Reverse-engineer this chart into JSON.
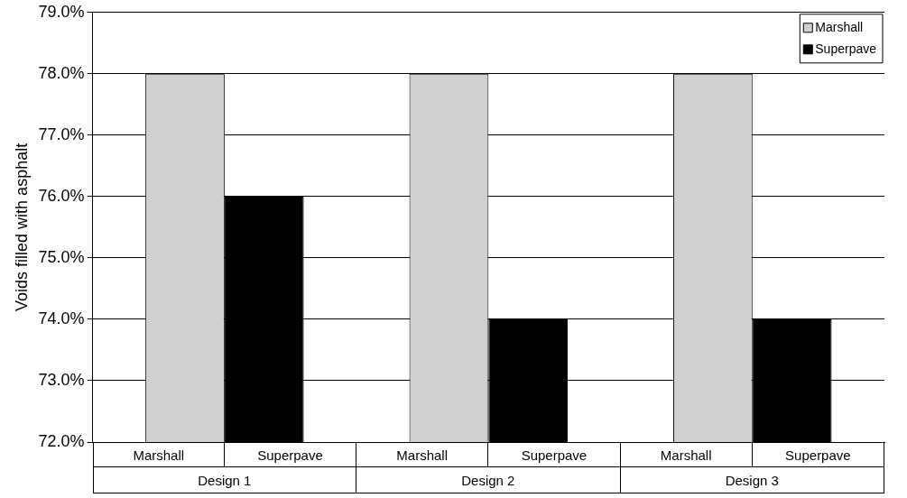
{
  "chart_data": {
    "type": "bar",
    "ylabel": "Voids filled with asphalt",
    "categories": [
      "Design 1",
      "Design 2",
      "Design 3"
    ],
    "series": [
      {
        "name": "Marshall",
        "color": "#d0d0d0",
        "values": [
          78.0,
          78.0,
          78.0
        ]
      },
      {
        "name": "Superpave",
        "color": "#000000",
        "values": [
          76.0,
          74.0,
          74.0
        ]
      }
    ],
    "ylim": [
      72,
      79
    ],
    "yticks": [
      {
        "value": 72,
        "label": "72.0%"
      },
      {
        "value": 73,
        "label": "73.0%"
      },
      {
        "value": 74,
        "label": "74.0%"
      },
      {
        "value": 75,
        "label": "75.0%"
      },
      {
        "value": 76,
        "label": "76.0%"
      },
      {
        "value": 77,
        "label": "77.0%"
      },
      {
        "value": 78,
        "label": "78.0%"
      },
      {
        "value": 79,
        "label": "79.0%"
      }
    ],
    "grid": "y",
    "legend": "top right"
  }
}
